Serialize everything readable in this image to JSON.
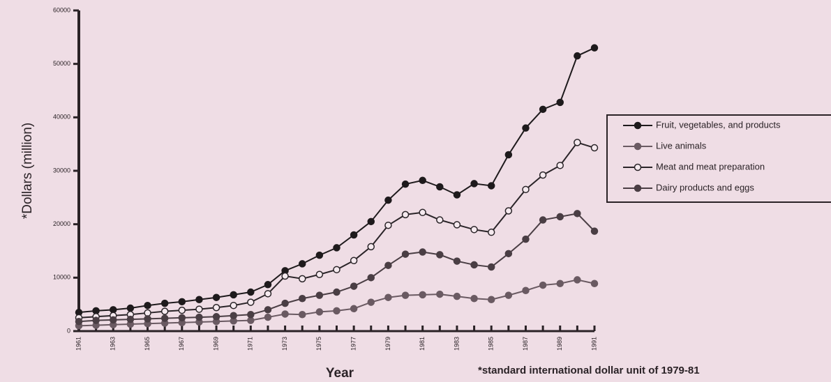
{
  "chart_data": {
    "type": "line",
    "ylabel": "*Dollars (million)",
    "xlabel": "Year",
    "note": "*standard international dollar unit of 1979-81",
    "x": [
      1961,
      1962,
      1963,
      1964,
      1965,
      1966,
      1967,
      1968,
      1969,
      1970,
      1971,
      1972,
      1973,
      1974,
      1975,
      1976,
      1977,
      1978,
      1979,
      1980,
      1981,
      1982,
      1983,
      1984,
      1985,
      1986,
      1987,
      1988,
      1989,
      1990,
      1991
    ],
    "xlim": [
      1961,
      1991
    ],
    "xticks": [
      1961,
      1963,
      1965,
      1967,
      1969,
      1971,
      1973,
      1975,
      1977,
      1979,
      1981,
      1983,
      1985,
      1987,
      1989,
      1991
    ],
    "ylim": [
      0,
      60000
    ],
    "yticks": [
      0,
      10000,
      20000,
      30000,
      40000,
      50000,
      60000
    ],
    "series": [
      {
        "name": "Fruit, vegetables, and products",
        "color": "#1e1a1c",
        "marker": "filled",
        "values": [
          3500,
          3800,
          4000,
          4300,
          4800,
          5200,
          5500,
          5900,
          6300,
          6800,
          7300,
          8700,
          11300,
          12600,
          14200,
          15600,
          18000,
          20500,
          24500,
          27500,
          28200,
          27000,
          25500,
          27600,
          27200,
          33000,
          38000,
          41500,
          42800,
          51500,
          53000
        ]
      },
      {
        "name": "Live animals",
        "color": "#6a5a62",
        "marker": "filled",
        "values": [
          1000,
          1100,
          1200,
          1300,
          1400,
          1500,
          1600,
          1700,
          1800,
          1900,
          2000,
          2600,
          3200,
          3100,
          3600,
          3800,
          4200,
          5400,
          6300,
          6700,
          6800,
          6900,
          6500,
          6100,
          5900,
          6700,
          7600,
          8600,
          8900,
          9600,
          8900
        ]
      },
      {
        "name": "Meat and meat preparation",
        "color": "#2a2428",
        "marker": "open",
        "values": [
          2500,
          2700,
          2900,
          3100,
          3400,
          3700,
          3900,
          4100,
          4400,
          4800,
          5400,
          7000,
          10300,
          9800,
          10600,
          11500,
          13200,
          15800,
          19800,
          21800,
          22200,
          20800,
          19900,
          19000,
          18500,
          22500,
          26500,
          29200,
          31000,
          35300,
          34300
        ]
      },
      {
        "name": "Dairy products and eggs",
        "color": "#4a3e44",
        "marker": "filled",
        "values": [
          1800,
          2000,
          2100,
          2200,
          2300,
          2400,
          2500,
          2600,
          2700,
          2900,
          3100,
          4000,
          5200,
          6100,
          6700,
          7300,
          8400,
          10000,
          12300,
          14400,
          14800,
          14300,
          13100,
          12400,
          12000,
          14500,
          17200,
          20800,
          21400,
          22000,
          18700
        ]
      }
    ]
  }
}
